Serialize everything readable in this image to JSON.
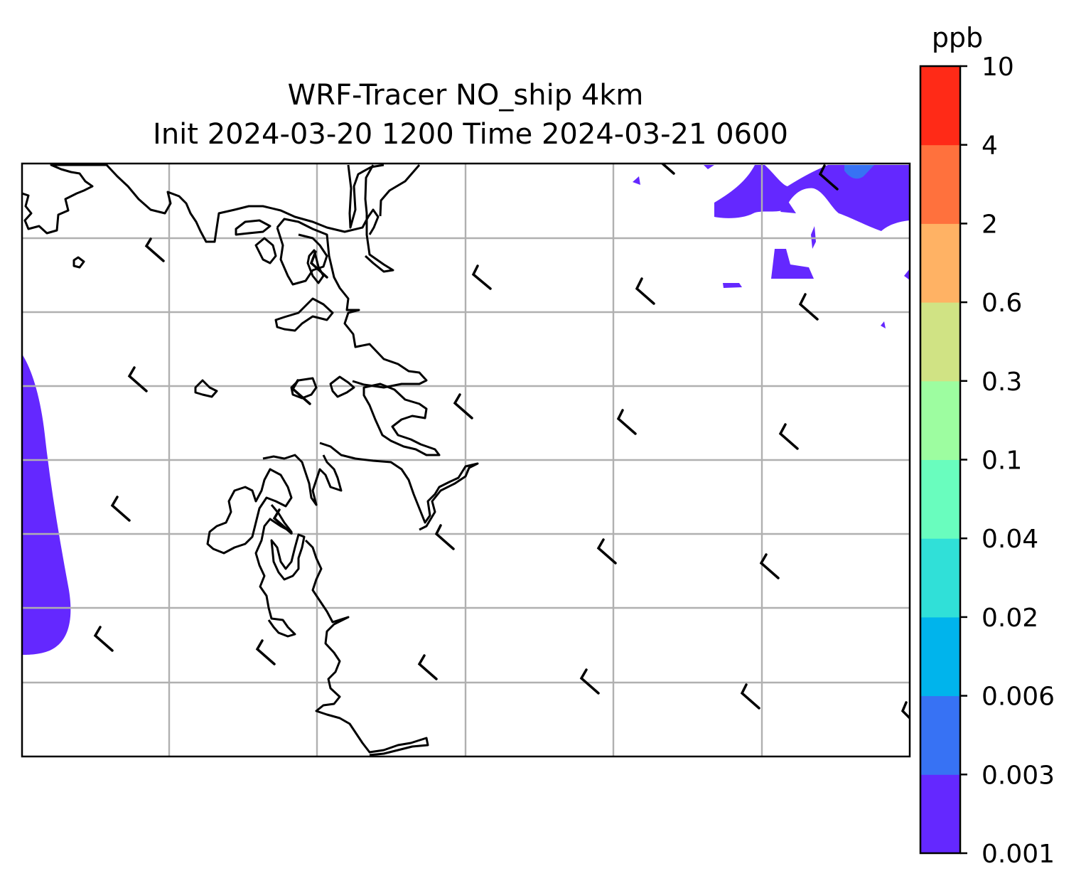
{
  "title": {
    "line1": "WRF-Tracer NO_ship 4km",
    "line2": "Init 2024-03-20 1200 Time 2024-03-21 0600"
  },
  "colorbar": {
    "unit": "ppb",
    "ticks": [
      "0.001",
      "0.003",
      "0.006",
      "0.02",
      "0.04",
      "0.1",
      "0.3",
      "0.6",
      "2",
      "4",
      "10"
    ],
    "colors": [
      "#6428ff",
      "#3772f4",
      "#00b4ec",
      "#30e0d8",
      "#69fdbe",
      "#9dfda0",
      "#d0e384",
      "#ffb264",
      "#ff713d",
      "#ff2a17"
    ]
  },
  "map": {
    "gridlines": true,
    "coastline_color": "#000000",
    "tracer_color": "#6428ff"
  }
}
